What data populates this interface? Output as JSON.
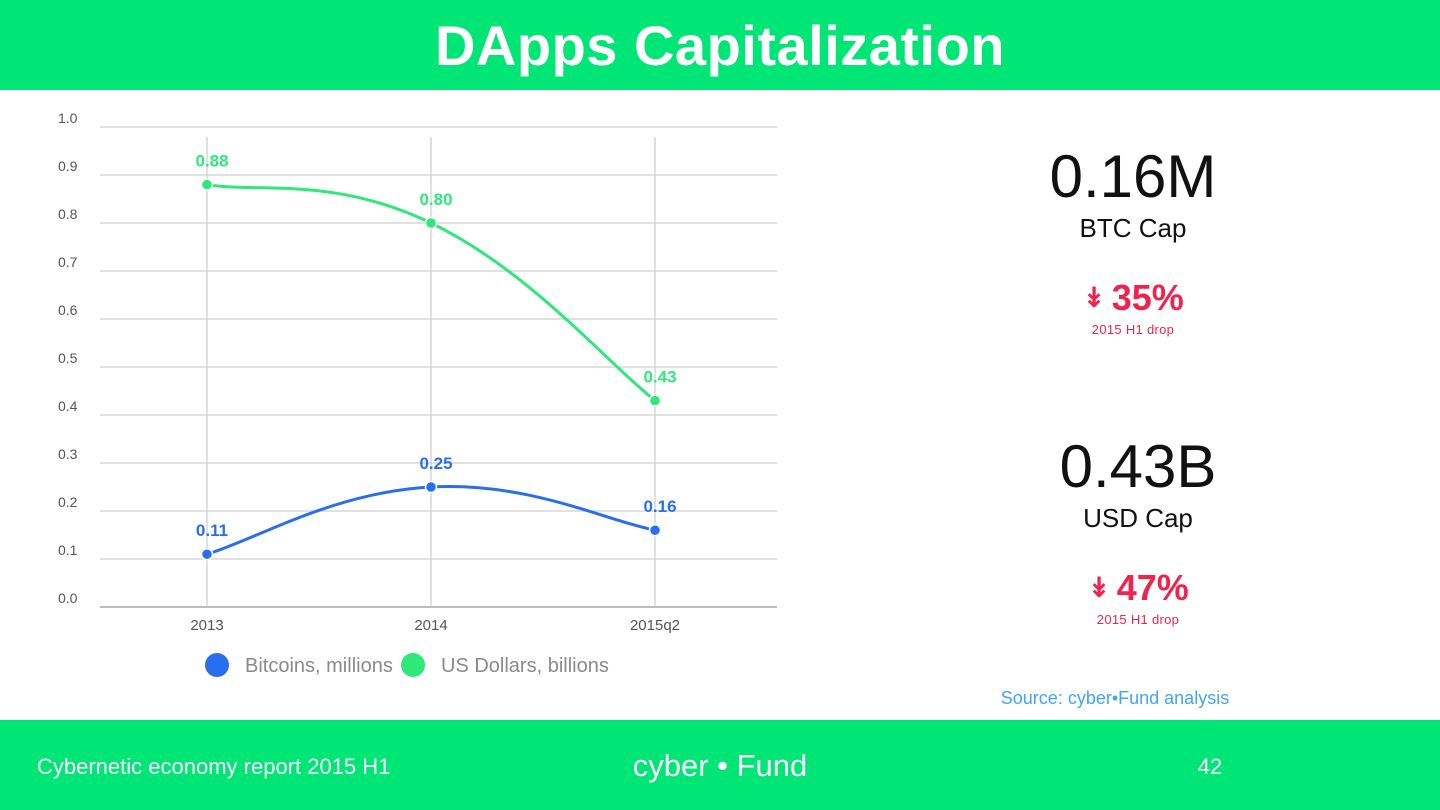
{
  "header": {
    "title": "DApps Capitalization"
  },
  "chart_data": {
    "type": "line",
    "categories": [
      "2013",
      "2014",
      "2015q2"
    ],
    "series": [
      {
        "name": "Bitcoins, millions",
        "values": [
          0.11,
          0.25,
          0.16
        ],
        "labels": [
          "0.11",
          "0.25",
          "0.16"
        ],
        "color": "#2a6ef0"
      },
      {
        "name": "US Dollars, billions",
        "values": [
          0.88,
          0.8,
          0.43
        ],
        "labels": [
          "0.88",
          "0.80",
          "0.43"
        ],
        "color": "#2ee87a"
      }
    ],
    "yticks": [
      "0.0",
      "0.1",
      "0.2",
      "0.3",
      "0.4",
      "0.5",
      "0.6",
      "0.7",
      "0.8",
      "0.9",
      "1.0"
    ],
    "ylim": [
      0,
      1.0
    ],
    "grid": true,
    "legend": "bottom"
  },
  "stats": {
    "btc": {
      "value": "0.16M",
      "label": "BTC Cap",
      "drop": "35%",
      "drop_note": "2015 H1 drop"
    },
    "usd": {
      "value": "0.43B",
      "label": "USD Cap",
      "drop": "47%",
      "drop_note": "2015 H1 drop"
    }
  },
  "source": "Source: cyber•Fund analysis",
  "footer": {
    "left": "Cybernetic economy report 2015 H1",
    "brand": "cyber • Fund",
    "page": "42"
  },
  "colors": {
    "accent": "#00e676",
    "drop": "#f0234e",
    "source": "#42a5f5"
  }
}
